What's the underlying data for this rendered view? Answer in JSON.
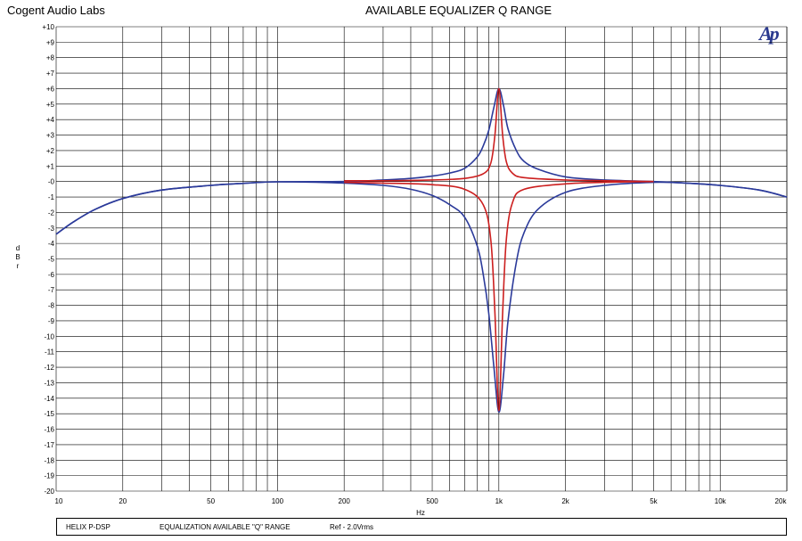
{
  "header": {
    "company": "Cogent Audio Labs",
    "title": "AVAILABLE EQUALIZER Q RANGE",
    "logo_text": "Ap"
  },
  "footer": {
    "device": "HELIX P-DSP",
    "description": "EQUALIZATION   AVAILABLE \"Q\" RANGE",
    "reference": "Ref - 2.0Vrms"
  },
  "colors": {
    "grid": "#000000",
    "series_blue": "#2b3a9a",
    "series_red": "#cc1f1f",
    "logo": "#2b3a8f"
  },
  "chart_data": {
    "type": "line",
    "title": "AVAILABLE EQUALIZER Q RANGE",
    "xlabel": "Hz",
    "ylabel": "d B r",
    "x_scale": "log",
    "xlim": [
      10,
      20000
    ],
    "ylim": [
      -20,
      10
    ],
    "grid": true,
    "x_tick_labels": [
      {
        "value": 10,
        "label": "10"
      },
      {
        "value": 20,
        "label": "20"
      },
      {
        "value": 50,
        "label": "50"
      },
      {
        "value": 100,
        "label": "100"
      },
      {
        "value": 200,
        "label": "200"
      },
      {
        "value": 500,
        "label": "500"
      },
      {
        "value": 1000,
        "label": "1k"
      },
      {
        "value": 2000,
        "label": "2k"
      },
      {
        "value": 5000,
        "label": "5k"
      },
      {
        "value": 10000,
        "label": "10k"
      },
      {
        "value": 20000,
        "label": "20k"
      }
    ],
    "y_tick_labels": [
      {
        "value": 10,
        "label": "+10"
      },
      {
        "value": 9,
        "label": "+9"
      },
      {
        "value": 8,
        "label": "+8"
      },
      {
        "value": 7,
        "label": "+7"
      },
      {
        "value": 6,
        "label": "+6"
      },
      {
        "value": 5,
        "label": "+5"
      },
      {
        "value": 4,
        "label": "+4"
      },
      {
        "value": 3,
        "label": "+3"
      },
      {
        "value": 2,
        "label": "+2"
      },
      {
        "value": 1,
        "label": "+1"
      },
      {
        "value": 0,
        "label": "-0"
      },
      {
        "value": -1,
        "label": "-1"
      },
      {
        "value": -2,
        "label": "-2"
      },
      {
        "value": -3,
        "label": "-3"
      },
      {
        "value": -4,
        "label": "-4"
      },
      {
        "value": -5,
        "label": "-5"
      },
      {
        "value": -6,
        "label": "-6"
      },
      {
        "value": -7,
        "label": "-7"
      },
      {
        "value": -8,
        "label": "-8"
      },
      {
        "value": -9,
        "label": "-9"
      },
      {
        "value": -10,
        "label": "-10"
      },
      {
        "value": -11,
        "label": "-11"
      },
      {
        "value": -12,
        "label": "-12"
      },
      {
        "value": -13,
        "label": "-13"
      },
      {
        "value": -14,
        "label": "-14"
      },
      {
        "value": -15,
        "label": "-15"
      },
      {
        "value": -16,
        "label": "-16"
      },
      {
        "value": -17,
        "label": "-17"
      },
      {
        "value": -18,
        "label": "-18"
      },
      {
        "value": -19,
        "label": "-19"
      },
      {
        "value": -20,
        "label": "-20"
      }
    ],
    "series": [
      {
        "color": "#2b3a9a",
        "x": [
          10,
          12,
          15,
          20,
          30,
          50,
          70,
          100,
          200,
          300,
          400,
          500,
          600,
          700,
          800,
          850,
          900,
          950,
          1000,
          1050,
          1100,
          1200,
          1300,
          1500,
          2000,
          3000,
          5000,
          7000,
          10000,
          15000,
          20000
        ],
        "y": [
          -3.4,
          -2.6,
          -1.8,
          -1.1,
          -0.55,
          -0.25,
          -0.12,
          -0.02,
          0.0,
          0.1,
          0.2,
          0.35,
          0.55,
          0.85,
          1.6,
          2.3,
          3.3,
          4.8,
          6.0,
          4.9,
          3.4,
          2.0,
          1.3,
          0.8,
          0.3,
          0.1,
          0.0,
          -0.1,
          -0.25,
          -0.55,
          -1.0
        ]
      },
      {
        "color": "#2b3a9a",
        "x": [
          10,
          12,
          15,
          20,
          30,
          50,
          70,
          100,
          200,
          300,
          400,
          500,
          600,
          700,
          800,
          850,
          900,
          950,
          1000,
          1050,
          1100,
          1200,
          1300,
          1500,
          2000,
          3000,
          5000,
          7000,
          10000,
          15000,
          20000
        ],
        "y": [
          -3.4,
          -2.6,
          -1.8,
          -1.1,
          -0.55,
          -0.25,
          -0.12,
          -0.02,
          -0.1,
          -0.25,
          -0.5,
          -0.9,
          -1.5,
          -2.3,
          -4.2,
          -6.0,
          -8.5,
          -12.0,
          -14.9,
          -12.5,
          -9.0,
          -5.2,
          -3.3,
          -1.8,
          -0.7,
          -0.25,
          -0.05,
          -0.1,
          -0.25,
          -0.55,
          -1.0
        ]
      },
      {
        "color": "#cc1f1f",
        "x": [
          200,
          300,
          500,
          700,
          850,
          920,
          960,
          1000,
          1040,
          1080,
          1150,
          1300,
          2000,
          3000,
          5000
        ],
        "y": [
          0.05,
          0.05,
          0.1,
          0.2,
          0.5,
          1.2,
          3.0,
          6.0,
          3.0,
          1.3,
          0.55,
          0.25,
          0.1,
          0.05,
          0.0
        ]
      },
      {
        "color": "#cc1f1f",
        "x": [
          200,
          300,
          500,
          700,
          850,
          920,
          960,
          1000,
          1040,
          1080,
          1150,
          1300,
          2000,
          3000,
          5000
        ],
        "y": [
          -0.05,
          -0.1,
          -0.2,
          -0.5,
          -1.5,
          -3.8,
          -8.5,
          -14.8,
          -8.5,
          -3.8,
          -1.4,
          -0.5,
          -0.15,
          -0.05,
          0.0
        ]
      }
    ]
  }
}
